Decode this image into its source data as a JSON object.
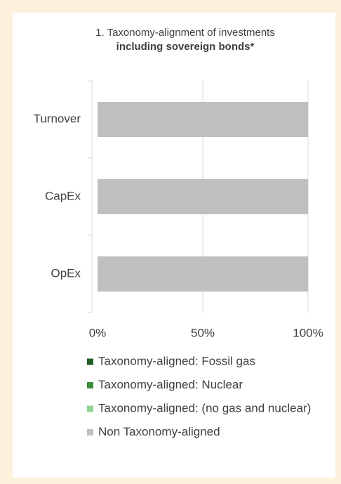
{
  "chart_data": {
    "type": "stacked-barh",
    "title": "1. Taxonomy-alignment of investments",
    "subtitle": "including sovereign bonds*",
    "categories": [
      "Turnover",
      "CapEx",
      "OpEx"
    ],
    "series": [
      {
        "name": "Taxonomy-aligned: Fossil gas",
        "color": "#1f5c24",
        "values": [
          0,
          0,
          0
        ]
      },
      {
        "name": "Taxonomy-aligned: Nuclear",
        "color": "#3d8b3d",
        "values": [
          0,
          0,
          0
        ]
      },
      {
        "name": "Taxonomy-aligned: (no gas and nuclear)",
        "color": "#8fd18f",
        "values": [
          0,
          0,
          0
        ]
      },
      {
        "name": "Non Taxonomy-aligned",
        "color": "#bfbfbf",
        "values": [
          100,
          100,
          100
        ]
      }
    ],
    "xlim": [
      0,
      100
    ],
    "xticks": [
      {
        "value": 0,
        "label": "0%"
      },
      {
        "value": 50,
        "label": "50%"
      },
      {
        "value": 100,
        "label": "100%"
      }
    ],
    "grid": true
  }
}
